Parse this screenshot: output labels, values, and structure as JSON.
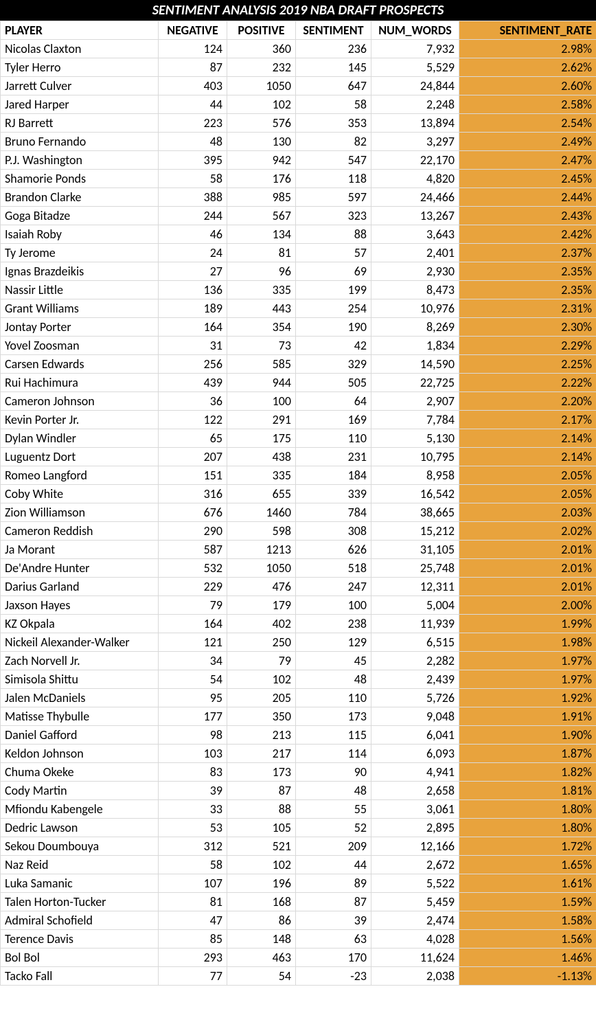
{
  "title": "SENTIMENT ANALYSIS 2019 NBA DRAFT PROSPECTS",
  "colors": {
    "header_bg": "#000000",
    "header_text": "#ffffff",
    "rate_bg": "#e8a33d",
    "border": "#d9d9d9",
    "row_bg": "#ffffff"
  },
  "columns": [
    "PLAYER",
    "NEGATIVE",
    "POSITIVE",
    "SENTIMENT",
    "NUM_WORDS",
    "SENTIMENT_RATE"
  ],
  "rows": [
    {
      "player": "Nicolas Claxton",
      "neg": "124",
      "pos": "360",
      "sent": "236",
      "words": "7,932",
      "rate": "2.98%"
    },
    {
      "player": "Tyler Herro",
      "neg": "87",
      "pos": "232",
      "sent": "145",
      "words": "5,529",
      "rate": "2.62%"
    },
    {
      "player": "Jarrett Culver",
      "neg": "403",
      "pos": "1050",
      "sent": "647",
      "words": "24,844",
      "rate": "2.60%"
    },
    {
      "player": "Jared Harper",
      "neg": "44",
      "pos": "102",
      "sent": "58",
      "words": "2,248",
      "rate": "2.58%"
    },
    {
      "player": "RJ Barrett",
      "neg": "223",
      "pos": "576",
      "sent": "353",
      "words": "13,894",
      "rate": "2.54%"
    },
    {
      "player": "Bruno Fernando",
      "neg": "48",
      "pos": "130",
      "sent": "82",
      "words": "3,297",
      "rate": "2.49%"
    },
    {
      "player": "P.J. Washington",
      "neg": "395",
      "pos": "942",
      "sent": "547",
      "words": "22,170",
      "rate": "2.47%"
    },
    {
      "player": "Shamorie Ponds",
      "neg": "58",
      "pos": "176",
      "sent": "118",
      "words": "4,820",
      "rate": "2.45%"
    },
    {
      "player": "Brandon Clarke",
      "neg": "388",
      "pos": "985",
      "sent": "597",
      "words": "24,466",
      "rate": "2.44%"
    },
    {
      "player": "Goga Bitadze",
      "neg": "244",
      "pos": "567",
      "sent": "323",
      "words": "13,267",
      "rate": "2.43%"
    },
    {
      "player": "Isaiah Roby",
      "neg": "46",
      "pos": "134",
      "sent": "88",
      "words": "3,643",
      "rate": "2.42%"
    },
    {
      "player": "Ty Jerome",
      "neg": "24",
      "pos": "81",
      "sent": "57",
      "words": "2,401",
      "rate": "2.37%"
    },
    {
      "player": "Ignas Brazdeikis",
      "neg": "27",
      "pos": "96",
      "sent": "69",
      "words": "2,930",
      "rate": "2.35%"
    },
    {
      "player": "Nassir Little",
      "neg": "136",
      "pos": "335",
      "sent": "199",
      "words": "8,473",
      "rate": "2.35%"
    },
    {
      "player": "Grant Williams",
      "neg": "189",
      "pos": "443",
      "sent": "254",
      "words": "10,976",
      "rate": "2.31%"
    },
    {
      "player": "Jontay Porter",
      "neg": "164",
      "pos": "354",
      "sent": "190",
      "words": "8,269",
      "rate": "2.30%"
    },
    {
      "player": "Yovel Zoosman",
      "neg": "31",
      "pos": "73",
      "sent": "42",
      "words": "1,834",
      "rate": "2.29%"
    },
    {
      "player": "Carsen Edwards",
      "neg": "256",
      "pos": "585",
      "sent": "329",
      "words": "14,590",
      "rate": "2.25%"
    },
    {
      "player": "Rui Hachimura",
      "neg": "439",
      "pos": "944",
      "sent": "505",
      "words": "22,725",
      "rate": "2.22%"
    },
    {
      "player": "Cameron Johnson",
      "neg": "36",
      "pos": "100",
      "sent": "64",
      "words": "2,907",
      "rate": "2.20%"
    },
    {
      "player": "Kevin Porter Jr.",
      "neg": "122",
      "pos": "291",
      "sent": "169",
      "words": "7,784",
      "rate": "2.17%"
    },
    {
      "player": "Dylan Windler",
      "neg": "65",
      "pos": "175",
      "sent": "110",
      "words": "5,130",
      "rate": "2.14%"
    },
    {
      "player": "Luguentz Dort",
      "neg": "207",
      "pos": "438",
      "sent": "231",
      "words": "10,795",
      "rate": "2.14%"
    },
    {
      "player": "Romeo Langford",
      "neg": "151",
      "pos": "335",
      "sent": "184",
      "words": "8,958",
      "rate": "2.05%"
    },
    {
      "player": "Coby White",
      "neg": "316",
      "pos": "655",
      "sent": "339",
      "words": "16,542",
      "rate": "2.05%"
    },
    {
      "player": "Zion Williamson",
      "neg": "676",
      "pos": "1460",
      "sent": "784",
      "words": "38,665",
      "rate": "2.03%"
    },
    {
      "player": "Cameron Reddish",
      "neg": "290",
      "pos": "598",
      "sent": "308",
      "words": "15,212",
      "rate": "2.02%"
    },
    {
      "player": "Ja Morant",
      "neg": "587",
      "pos": "1213",
      "sent": "626",
      "words": "31,105",
      "rate": "2.01%"
    },
    {
      "player": "De'Andre Hunter",
      "neg": "532",
      "pos": "1050",
      "sent": "518",
      "words": "25,748",
      "rate": "2.01%"
    },
    {
      "player": "Darius Garland",
      "neg": "229",
      "pos": "476",
      "sent": "247",
      "words": "12,311",
      "rate": "2.01%"
    },
    {
      "player": "Jaxson Hayes",
      "neg": "79",
      "pos": "179",
      "sent": "100",
      "words": "5,004",
      "rate": "2.00%"
    },
    {
      "player": "KZ Okpala",
      "neg": "164",
      "pos": "402",
      "sent": "238",
      "words": "11,939",
      "rate": "1.99%"
    },
    {
      "player": "Nickeil Alexander-Walker",
      "neg": "121",
      "pos": "250",
      "sent": "129",
      "words": "6,515",
      "rate": "1.98%"
    },
    {
      "player": "Zach Norvell Jr.",
      "neg": "34",
      "pos": "79",
      "sent": "45",
      "words": "2,282",
      "rate": "1.97%"
    },
    {
      "player": "Simisola Shittu",
      "neg": "54",
      "pos": "102",
      "sent": "48",
      "words": "2,439",
      "rate": "1.97%"
    },
    {
      "player": "Jalen McDaniels",
      "neg": "95",
      "pos": "205",
      "sent": "110",
      "words": "5,726",
      "rate": "1.92%"
    },
    {
      "player": "Matisse Thybulle",
      "neg": "177",
      "pos": "350",
      "sent": "173",
      "words": "9,048",
      "rate": "1.91%"
    },
    {
      "player": "Daniel Gafford",
      "neg": "98",
      "pos": "213",
      "sent": "115",
      "words": "6,041",
      "rate": "1.90%"
    },
    {
      "player": "Keldon Johnson",
      "neg": "103",
      "pos": "217",
      "sent": "114",
      "words": "6,093",
      "rate": "1.87%"
    },
    {
      "player": "Chuma Okeke",
      "neg": "83",
      "pos": "173",
      "sent": "90",
      "words": "4,941",
      "rate": "1.82%"
    },
    {
      "player": "Cody Martin",
      "neg": "39",
      "pos": "87",
      "sent": "48",
      "words": "2,658",
      "rate": "1.81%"
    },
    {
      "player": "Mfiondu Kabengele",
      "neg": "33",
      "pos": "88",
      "sent": "55",
      "words": "3,061",
      "rate": "1.80%"
    },
    {
      "player": "Dedric Lawson",
      "neg": "53",
      "pos": "105",
      "sent": "52",
      "words": "2,895",
      "rate": "1.80%"
    },
    {
      "player": "Sekou Doumbouya",
      "neg": "312",
      "pos": "521",
      "sent": "209",
      "words": "12,166",
      "rate": "1.72%"
    },
    {
      "player": "Naz Reid",
      "neg": "58",
      "pos": "102",
      "sent": "44",
      "words": "2,672",
      "rate": "1.65%"
    },
    {
      "player": "Luka Samanic",
      "neg": "107",
      "pos": "196",
      "sent": "89",
      "words": "5,522",
      "rate": "1.61%"
    },
    {
      "player": "Talen Horton-Tucker",
      "neg": "81",
      "pos": "168",
      "sent": "87",
      "words": "5,459",
      "rate": "1.59%"
    },
    {
      "player": "Admiral Schofield",
      "neg": "47",
      "pos": "86",
      "sent": "39",
      "words": "2,474",
      "rate": "1.58%"
    },
    {
      "player": "Terence Davis",
      "neg": "85",
      "pos": "148",
      "sent": "63",
      "words": "4,028",
      "rate": "1.56%"
    },
    {
      "player": "Bol Bol",
      "neg": "293",
      "pos": "463",
      "sent": "170",
      "words": "11,624",
      "rate": "1.46%"
    },
    {
      "player": "Tacko Fall",
      "neg": "77",
      "pos": "54",
      "sent": "-23",
      "words": "2,038",
      "rate": "-1.13%"
    }
  ]
}
